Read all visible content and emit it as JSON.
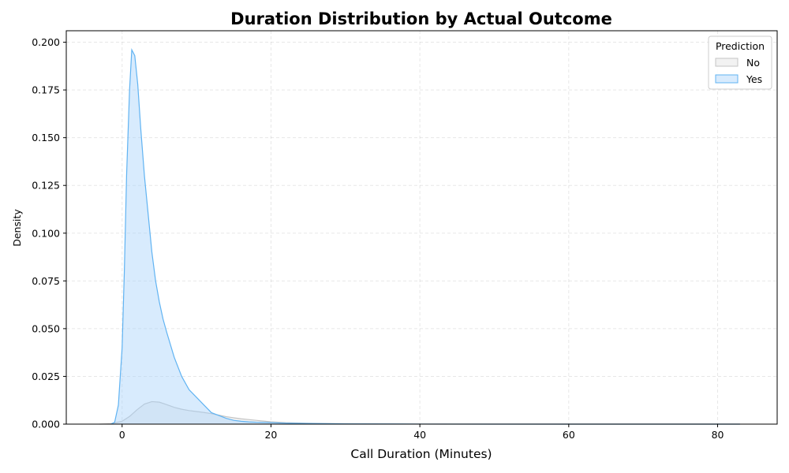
{
  "chart_data": {
    "type": "area",
    "title": "Duration Distribution by Actual Outcome",
    "xlabel": "Call Duration (Minutes)",
    "ylabel": "Density",
    "xlim": [
      -7.5,
      88
    ],
    "ylim": [
      0,
      0.206
    ],
    "x_ticks": [
      0,
      20,
      40,
      60,
      80
    ],
    "x_tick_labels": [
      "0",
      "20",
      "40",
      "60",
      "80"
    ],
    "y_ticks": [
      0,
      0.025,
      0.05,
      0.075,
      0.1,
      0.125,
      0.15,
      0.175,
      0.2
    ],
    "y_tick_labels": [
      "0.000",
      "0.025",
      "0.050",
      "0.075",
      "0.100",
      "0.125",
      "0.150",
      "0.175",
      "0.200"
    ],
    "grid": true,
    "legend": {
      "title": "Prediction",
      "placement": "top-right",
      "entries": [
        "No",
        "Yes"
      ]
    },
    "series": [
      {
        "name": "No",
        "fill_color": "#d9d9d9",
        "line_color": "#c4c4c4",
        "fill_opacity": 0.35,
        "x": [
          -3,
          -1.5,
          0,
          1,
          2,
          3,
          4,
          5,
          6,
          7,
          8,
          9,
          10,
          11,
          12,
          13,
          14,
          15,
          16,
          17,
          18,
          19,
          20,
          22,
          25,
          30,
          35,
          40,
          50,
          60,
          70,
          80,
          83
        ],
        "y": [
          0,
          0.0002,
          0.0015,
          0.004,
          0.0075,
          0.0105,
          0.0118,
          0.0115,
          0.0102,
          0.0088,
          0.0078,
          0.0071,
          0.0066,
          0.0061,
          0.0055,
          0.0047,
          0.0039,
          0.0033,
          0.0028,
          0.0024,
          0.002,
          0.0016,
          0.0012,
          0.0008,
          0.0005,
          0.0002,
          0.0001,
          5e-05,
          2e-05,
          1e-05,
          1e-05,
          1e-05,
          0
        ]
      },
      {
        "name": "Yes",
        "fill_color": "#a9d2fa",
        "line_color": "#60b3f2",
        "fill_opacity": 0.45,
        "x": [
          -1.5,
          -1,
          -0.5,
          0,
          0.3,
          0.6,
          1,
          1.3,
          1.7,
          2.1,
          2.5,
          3,
          3.5,
          4,
          4.5,
          5,
          5.5,
          6,
          7,
          8,
          9,
          10,
          11,
          12,
          13,
          14,
          15,
          16,
          17,
          18,
          19,
          20,
          22,
          25,
          30,
          40,
          50,
          60,
          70,
          80,
          83
        ],
        "y": [
          0,
          0.001,
          0.01,
          0.04,
          0.08,
          0.13,
          0.175,
          0.196,
          0.193,
          0.178,
          0.155,
          0.13,
          0.11,
          0.09,
          0.075,
          0.064,
          0.055,
          0.048,
          0.035,
          0.025,
          0.018,
          0.014,
          0.01,
          0.006,
          0.0045,
          0.003,
          0.002,
          0.0015,
          0.0012,
          0.001,
          0.0009,
          0.0008,
          0.0005,
          0.0003,
          0.0001,
          3e-05,
          1e-05,
          1e-05,
          1e-05,
          1e-05,
          0
        ]
      }
    ]
  }
}
